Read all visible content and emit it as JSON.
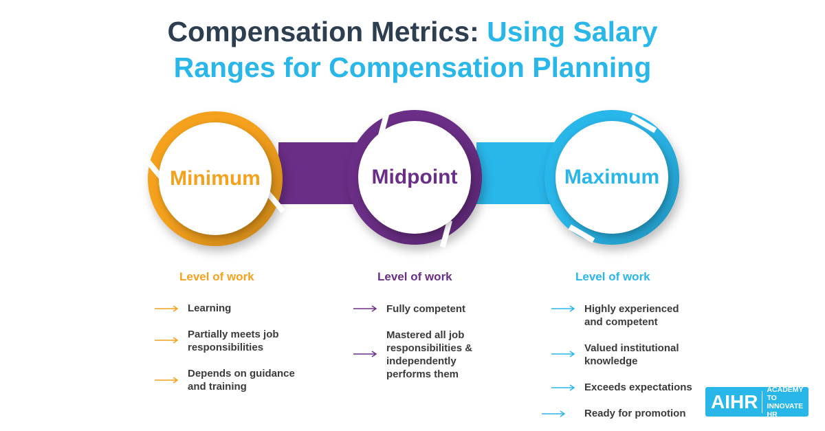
{
  "title": {
    "part1": "Compensation Metrics: ",
    "part2": "Using Salary",
    "line2": "Ranges for Compensation Planning"
  },
  "colors": {
    "minimum": "#f4a11d",
    "midpoint": "#6b2e86",
    "maximum": "#29b6e9",
    "title": "#2c3e50"
  },
  "stages": [
    {
      "label": "Minimum",
      "heading": "Level of work",
      "items": [
        "Learning",
        "Partially meets job responsibilities",
        "Depends on guidance and training"
      ]
    },
    {
      "label": "Midpoint",
      "heading": "Level of work",
      "items": [
        "Fully competent",
        "Mastered all job responsibilities & independently performs them"
      ]
    },
    {
      "label": "Maximum",
      "heading": "Level of work",
      "items": [
        "Highly experienced and competent",
        "Valued institutional knowledge",
        "Exceeds expectations",
        "Ready for promotion"
      ]
    }
  ],
  "logo": {
    "mark": "AIHR",
    "line1": "ACADEMY TO",
    "line2": "INNOVATE HR"
  }
}
